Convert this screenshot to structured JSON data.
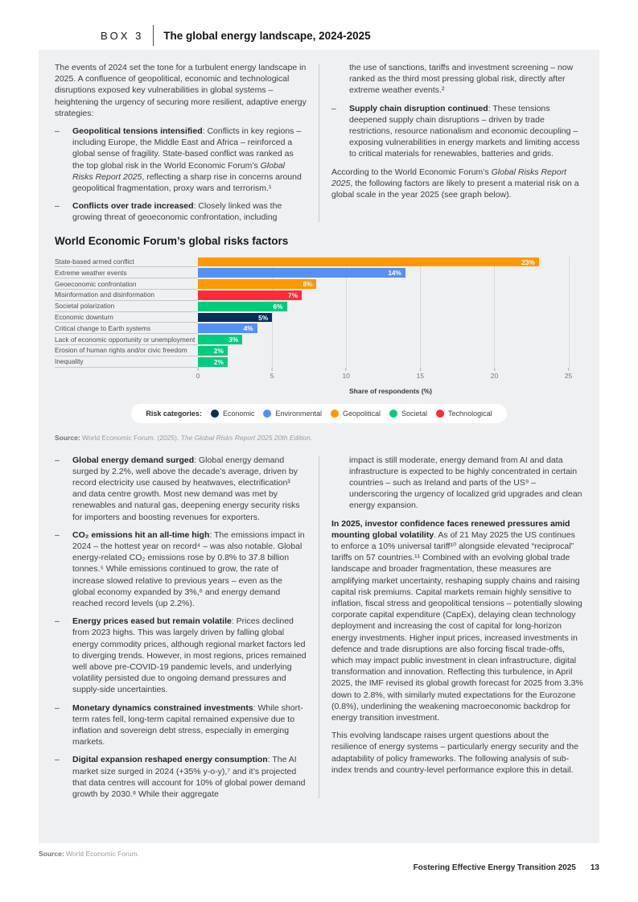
{
  "header": {
    "box_label": "BOX 3",
    "title": "The global energy landscape, 2024-2025"
  },
  "intro": {
    "left": [
      {
        "type": "p",
        "segments": [
          {
            "t": "The events of 2024 set the tone for a turbulent energy landscape in 2025. A confluence of geopolitical, economic and technological disruptions exposed key vulnerabilities in global systems – heightening the urgency of securing more resilient, adaptive energy strategies:"
          }
        ]
      },
      {
        "type": "bullet",
        "segments": [
          {
            "t": "Geopolitical tensions intensified",
            "s": "b"
          },
          {
            "t": ": Conflicts in key regions – including Europe, the Middle East and Africa – reinforced a global sense of fragility. State-based conflict was ranked as the top global risk in the World Economic Forum’s "
          },
          {
            "t": "Global Risks Report 2025",
            "s": "i"
          },
          {
            "t": ", reflecting a sharp rise in concerns around geopolitical fragmentation, proxy wars and terrorism.¹"
          }
        ]
      },
      {
        "type": "bullet",
        "segments": [
          {
            "t": "Conflicts over trade increased",
            "s": "b"
          },
          {
            "t": ": Closely linked was the growing threat of geoeconomic confrontation, including"
          }
        ]
      }
    ],
    "right": [
      {
        "type": "cont",
        "segments": [
          {
            "t": "the use of sanctions, tariffs and investment screening – now ranked as the third most pressing global risk, directly after extreme weather events.²"
          }
        ]
      },
      {
        "type": "bullet",
        "segments": [
          {
            "t": "Supply chain disruption continued",
            "s": "b"
          },
          {
            "t": ": These tensions deepened supply chain disruptions – driven by trade restrictions, resource nationalism and economic decoupling – exposing vulnerabilities in energy markets and limiting access to critical materials for renewables, batteries and grids."
          }
        ]
      },
      {
        "type": "p",
        "segments": [
          {
            "t": "According to the World Economic Forum’s "
          },
          {
            "t": "Global Risks Report 2025",
            "s": "i"
          },
          {
            "t": ", the following factors are likely to present a material risk on a global scale in the year 2025 (see graph below)."
          }
        ]
      }
    ]
  },
  "chart_data": {
    "type": "bar",
    "orientation": "horizontal",
    "title": "World Economic Forum’s global risks factors",
    "xlabel": "Share of respondents (%)",
    "xlim": [
      0,
      26
    ],
    "x_ticks": [
      0,
      5,
      10,
      15,
      20,
      25
    ],
    "grid": "vertical",
    "legend_position": "bottom",
    "legend_title": "Risk categories:",
    "risk_categories": [
      {
        "label": "Economic",
        "color": "#053057"
      },
      {
        "label": "Environmental",
        "color": "#5591F5"
      },
      {
        "label": "Geopolitical",
        "color": "#FF9800"
      },
      {
        "label": "Societal",
        "color": "#00CC7E"
      },
      {
        "label": "Technological",
        "color": "#FF2B38"
      }
    ],
    "bars": [
      {
        "label": "State-based armed conflict",
        "value": 23,
        "value_label": "23%",
        "category": "Geopolitical"
      },
      {
        "label": "Extreme weather events",
        "value": 14,
        "value_label": "14%",
        "category": "Environmental"
      },
      {
        "label": "Geoeconomic confrontation",
        "value": 8,
        "value_label": "8%",
        "category": "Geopolitical"
      },
      {
        "label": "Misinformation and disinformation",
        "value": 7,
        "value_label": "7%",
        "category": "Technological"
      },
      {
        "label": "Societal polarization",
        "value": 6,
        "value_label": "6%",
        "category": "Societal"
      },
      {
        "label": "Economic downturn",
        "value": 5,
        "value_label": "5%",
        "category": "Economic"
      },
      {
        "label": "Critical change to Earth systems",
        "value": 4,
        "value_label": "4%",
        "category": "Environmental"
      },
      {
        "label": "Lack of economic opportunity or unemployment",
        "value": 3,
        "value_label": "3%",
        "category": "Societal"
      },
      {
        "label": "Erosion of human rights and/or civic freedom",
        "value": 2,
        "value_label": "2%",
        "category": "Societal"
      },
      {
        "label": "Inequality",
        "value": 2,
        "value_label": "2%",
        "category": "Societal"
      }
    ],
    "source": {
      "prefix": "Source:",
      "text": " World Economic Forum. (2025). ",
      "italic": "The Global Risks Report 2025 20th Edition."
    }
  },
  "body": {
    "left": [
      {
        "type": "bullet",
        "segments": [
          {
            "t": "Global energy demand surged",
            "s": "b"
          },
          {
            "t": ": Global energy demand surged by 2.2%, well above the decade’s average, driven by record electricity use caused by heatwaves, electrification³ and data centre growth. Most new demand was met by renewables and natural gas, deepening energy security risks for importers and boosting revenues for exporters."
          }
        ]
      },
      {
        "type": "bullet",
        "segments": [
          {
            "t": "CO₂ emissions hit an all-time high",
            "s": "b"
          },
          {
            "t": ": The emissions impact in 2024 – the hottest year on record⁴ – was also notable. Global energy-related CO₂ emissions rose by 0.8% to 37.8 billion tonnes.⁵ While emissions continued to grow, the rate of increase slowed relative to previous years – even as the global economy expanded by 3%,⁶ and energy demand reached record levels (up 2.2%)."
          }
        ]
      },
      {
        "type": "bullet",
        "segments": [
          {
            "t": "Energy prices eased but remain volatile",
            "s": "b"
          },
          {
            "t": ": Prices declined from 2023 highs. This was largely driven by falling global energy commodity prices, although regional market factors led to diverging trends. However, in most regions, prices remained well above pre-COVID-19 pandemic levels, and underlying volatility persisted due to ongoing demand pressures and supply-side uncertainties."
          }
        ]
      },
      {
        "type": "bullet",
        "segments": [
          {
            "t": "Monetary dynamics constrained investments",
            "s": "b"
          },
          {
            "t": ": While short-term rates fell, long-term capital remained expensive due to inflation and sovereign debt stress, especially in emerging markets."
          }
        ]
      },
      {
        "type": "bullet",
        "segments": [
          {
            "t": "Digital expansion reshaped energy consumption",
            "s": "b"
          },
          {
            "t": ": The AI market size surged in 2024 (+35% y-o-y),⁷ and it’s projected that data centres will account for 10% of global power demand growth by 2030.⁸ While their aggregate"
          }
        ]
      }
    ],
    "right": [
      {
        "type": "cont",
        "segments": [
          {
            "t": "impact is still moderate, energy demand from AI and data infrastructure is expected to be highly concentrated in certain countries – such as Ireland and parts of the US⁹ – underscoring the urgency of localized grid upgrades and clean energy expansion."
          }
        ]
      },
      {
        "type": "p",
        "segments": [
          {
            "t": "In 2025, investor confidence faces renewed pressures amid mounting global volatility",
            "s": "b"
          },
          {
            "t": ". As of 21 May 2025 the US continues to enforce a 10% universal tariff¹⁰ alongside elevated “reciprocal” tariffs on 57 countries.¹¹ Combined with an evolving global trade landscape and broader fragmentation, these measures are amplifying market uncertainty, reshaping supply chains and raising capital risk premiums. Capital markets remain highly sensitive to inflation, fiscal stress and geopolitical tensions – potentially slowing corporate capital expenditure (CapEx), delaying clean technology deployment and increasing the cost of capital for long-horizon energy investments. Higher input prices, increased investments in defence and trade disruptions are also forcing fiscal trade-offs, which may impact public investment in clean infrastructure, digital transformation and innovation. Reflecting this turbulence, in April 2025, the IMF revised its global growth forecast for 2025 from 3.3% down to 2.8%, with similarly muted expectations for the Eurozone (0.8%), underlining the weakening macroeconomic backdrop for energy transition investment."
          }
        ]
      },
      {
        "type": "p",
        "segments": [
          {
            "t": "This evolving landscape raises urgent questions about the resilience of energy systems – particularly energy security and the adaptability of policy frameworks. The following analysis of sub-index trends and country-level performance explore this in detail."
          }
        ]
      }
    ]
  },
  "footer": {
    "source_prefix": "Source:",
    "source_text": " World Economic Forum.",
    "report_title": "Fostering Effective Energy Transition 2025",
    "page_number": "13"
  }
}
